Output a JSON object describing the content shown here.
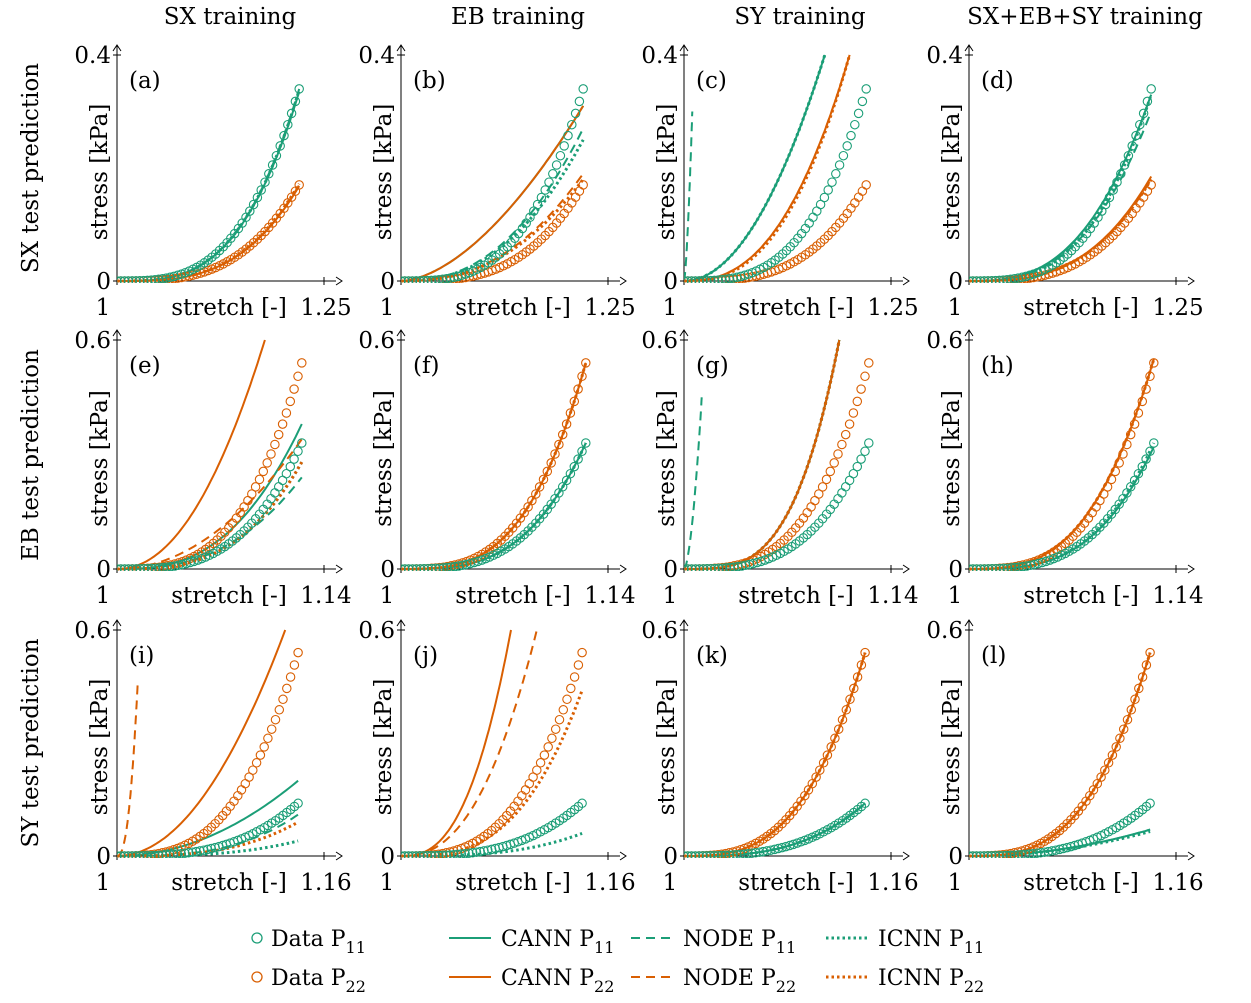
{
  "colors": {
    "p11": "#1b9e77",
    "p22": "#d95f02"
  },
  "col_titles": [
    "SX training",
    "EB training",
    "SY training",
    "SX+EB+SY training"
  ],
  "row_titles": [
    "SX test prediction",
    "EB test prediction",
    "SY test prediction"
  ],
  "legend": {
    "items": [
      {
        "label": "Data P",
        "sub": "11",
        "kind": "data",
        "series": "P11"
      },
      {
        "label": "CANN P",
        "sub": "11",
        "kind": "cann",
        "series": "P11"
      },
      {
        "label": "NODE P",
        "sub": "11",
        "kind": "node",
        "series": "P11"
      },
      {
        "label": "ICNN P",
        "sub": "11",
        "kind": "icnn",
        "series": "P11"
      },
      {
        "label": "Data P",
        "sub": "22",
        "kind": "data",
        "series": "P22"
      },
      {
        "label": "CANN P",
        "sub": "22",
        "kind": "cann",
        "series": "P22"
      },
      {
        "label": "NODE P",
        "sub": "22",
        "kind": "node",
        "series": "P22"
      },
      {
        "label": "ICNN P",
        "sub": "22",
        "kind": "icnn",
        "series": "P22"
      }
    ]
  },
  "chart_data": [
    {
      "panel": "(a)",
      "row": 0,
      "col": 0,
      "type": "line",
      "xlabel": "stretch [-]",
      "ylabel": "stress [kPa]",
      "xlim": [
        1,
        1.25
      ],
      "ylim": [
        0,
        0.4
      ],
      "xticks": [
        "1",
        "1.25"
      ],
      "yticks": [
        "0",
        "0.4"
      ],
      "data": {
        "P11": {
          "xmax": 1.22,
          "ymax": 0.34,
          "exp": 3.2
        },
        "P22": {
          "xmax": 1.22,
          "ymax": 0.17,
          "exp": 3.2
        }
      },
      "models": [
        {
          "model": "CANN",
          "series": "P11",
          "xmax": 1.22,
          "ymax": 0.335,
          "exp": 3.2
        },
        {
          "model": "CANN",
          "series": "P22",
          "xmax": 1.22,
          "ymax": 0.168,
          "exp": 3.2
        },
        {
          "model": "NODE",
          "series": "P11",
          "xmax": 1.22,
          "ymax": 0.34,
          "exp": 3.2
        },
        {
          "model": "NODE",
          "series": "P22",
          "xmax": 1.22,
          "ymax": 0.17,
          "exp": 3.2
        },
        {
          "model": "ICNN",
          "series": "P11",
          "xmax": 1.22,
          "ymax": 0.338,
          "exp": 3.2
        },
        {
          "model": "ICNN",
          "series": "P22",
          "xmax": 1.22,
          "ymax": 0.172,
          "exp": 3.2
        }
      ]
    },
    {
      "panel": "(b)",
      "row": 0,
      "col": 1,
      "type": "line",
      "xlabel": "stretch [-]",
      "ylabel": "stress [kPa]",
      "xlim": [
        1,
        1.25
      ],
      "ylim": [
        0,
        0.4
      ],
      "xticks": [
        "1",
        "1.25"
      ],
      "yticks": [
        "0",
        "0.4"
      ],
      "data": {
        "P11": {
          "xmax": 1.22,
          "ymax": 0.34,
          "exp": 3.2
        },
        "P22": {
          "xmax": 1.22,
          "ymax": 0.17,
          "exp": 3.2
        }
      },
      "models": [
        {
          "model": "CANN",
          "series": "P11",
          "xmax": 1.22,
          "ymax": 0.31,
          "exp": 1.7
        },
        {
          "model": "CANN",
          "series": "P22",
          "xmax": 1.22,
          "ymax": 0.31,
          "exp": 1.7
        },
        {
          "model": "NODE",
          "series": "P11",
          "xmax": 1.22,
          "ymax": 0.27,
          "exp": 2.4
        },
        {
          "model": "NODE",
          "series": "P22",
          "xmax": 1.22,
          "ymax": 0.19,
          "exp": 2.4
        },
        {
          "model": "ICNN",
          "series": "P11",
          "xmax": 1.22,
          "ymax": 0.25,
          "exp": 2.4
        },
        {
          "model": "ICNN",
          "series": "P22",
          "xmax": 1.22,
          "ymax": 0.18,
          "exp": 2.4
        }
      ]
    },
    {
      "panel": "(c)",
      "row": 0,
      "col": 2,
      "type": "line",
      "xlabel": "stretch [-]",
      "ylabel": "stress [kPa]",
      "xlim": [
        1,
        1.25
      ],
      "ylim": [
        0,
        0.4
      ],
      "xticks": [
        "1",
        "1.25"
      ],
      "yticks": [
        "0",
        "0.4"
      ],
      "data": {
        "P11": {
          "xmax": 1.22,
          "ymax": 0.34,
          "exp": 3.2
        },
        "P22": {
          "xmax": 1.22,
          "ymax": 0.17,
          "exp": 3.2
        }
      },
      "models": [
        {
          "model": "CANN",
          "series": "P11",
          "xmax": 1.17,
          "ymax": 0.4,
          "exp": 2.0
        },
        {
          "model": "CANN",
          "series": "P22",
          "xmax": 1.2,
          "ymax": 0.4,
          "exp": 2.5
        },
        {
          "model": "NODE",
          "series": "P11",
          "xmax": 1.01,
          "ymax": 0.3,
          "exp": 1.5
        },
        {
          "model": "NODE",
          "series": "P11",
          "xmax": 1.17,
          "ymax": 0.4,
          "exp": 2.0
        },
        {
          "model": "NODE",
          "series": "P22",
          "xmax": 1.2,
          "ymax": 0.4,
          "exp": 2.5
        },
        {
          "model": "ICNN",
          "series": "P11",
          "xmax": 1.17,
          "ymax": 0.4,
          "exp": 2.0
        },
        {
          "model": "ICNN",
          "series": "P22",
          "xmax": 1.2,
          "ymax": 0.4,
          "exp": 2.6
        }
      ]
    },
    {
      "panel": "(d)",
      "row": 0,
      "col": 3,
      "type": "line",
      "xlabel": "stretch [-]",
      "ylabel": "stress [kPa]",
      "xlim": [
        1,
        1.25
      ],
      "ylim": [
        0,
        0.4
      ],
      "xticks": [
        "1",
        "1.25"
      ],
      "yticks": [
        "0",
        "0.4"
      ],
      "data": {
        "P11": {
          "xmax": 1.22,
          "ymax": 0.34,
          "exp": 3.2
        },
        "P22": {
          "xmax": 1.22,
          "ymax": 0.17,
          "exp": 3.2
        }
      },
      "models": [
        {
          "model": "CANN",
          "series": "P11",
          "xmax": 1.22,
          "ymax": 0.33,
          "exp": 2.8
        },
        {
          "model": "CANN",
          "series": "P22",
          "xmax": 1.22,
          "ymax": 0.185,
          "exp": 3.0
        },
        {
          "model": "NODE",
          "series": "P11",
          "xmax": 1.22,
          "ymax": 0.3,
          "exp": 2.8
        },
        {
          "model": "NODE",
          "series": "P22",
          "xmax": 1.22,
          "ymax": 0.18,
          "exp": 3.0
        },
        {
          "model": "ICNN",
          "series": "P11",
          "xmax": 1.22,
          "ymax": 0.33,
          "exp": 3.0
        },
        {
          "model": "ICNN",
          "series": "P22",
          "xmax": 1.22,
          "ymax": 0.18,
          "exp": 3.0
        }
      ]
    },
    {
      "panel": "(e)",
      "row": 1,
      "col": 0,
      "type": "line",
      "xlabel": "stretch [-]",
      "ylabel": "stress [kPa]",
      "xlim": [
        1,
        1.14
      ],
      "ylim": [
        0,
        0.6
      ],
      "xticks": [
        "1",
        "1.14"
      ],
      "yticks": [
        "0",
        "0.6"
      ],
      "data": {
        "P11": {
          "xmax": 1.125,
          "ymax": 0.33,
          "exp": 3.2
        },
        "P22": {
          "xmax": 1.125,
          "ymax": 0.54,
          "exp": 3.2
        }
      },
      "models": [
        {
          "model": "CANN",
          "series": "P11",
          "xmax": 1.125,
          "ymax": 0.38,
          "exp": 2.7
        },
        {
          "model": "CANN",
          "series": "P22",
          "xmax": 1.1,
          "ymax": 0.6,
          "exp": 2.1
        },
        {
          "model": "NODE",
          "series": "P11",
          "xmax": 1.125,
          "ymax": 0.24,
          "exp": 2.6
        },
        {
          "model": "NODE",
          "series": "P22",
          "xmax": 1.125,
          "ymax": 0.34,
          "exp": 2.0
        },
        {
          "model": "ICNN",
          "series": "P11",
          "xmax": 1.125,
          "ymax": 0.28,
          "exp": 3.0
        },
        {
          "model": "ICNN",
          "series": "P22",
          "xmax": 1.125,
          "ymax": 0.28,
          "exp": 3.0
        }
      ]
    },
    {
      "panel": "(f)",
      "row": 1,
      "col": 1,
      "type": "line",
      "xlabel": "stretch [-]",
      "ylabel": "stress [kPa]",
      "xlim": [
        1,
        1.14
      ],
      "ylim": [
        0,
        0.6
      ],
      "xticks": [
        "1",
        "1.14"
      ],
      "yticks": [
        "0",
        "0.6"
      ],
      "data": {
        "P11": {
          "xmax": 1.125,
          "ymax": 0.33,
          "exp": 3.2
        },
        "P22": {
          "xmax": 1.125,
          "ymax": 0.54,
          "exp": 3.2
        }
      },
      "models": [
        {
          "model": "CANN",
          "series": "P11",
          "xmax": 1.125,
          "ymax": 0.33,
          "exp": 3.2
        },
        {
          "model": "CANN",
          "series": "P22",
          "xmax": 1.125,
          "ymax": 0.54,
          "exp": 3.2
        },
        {
          "model": "NODE",
          "series": "P11",
          "xmax": 1.125,
          "ymax": 0.33,
          "exp": 3.2
        },
        {
          "model": "NODE",
          "series": "P22",
          "xmax": 1.125,
          "ymax": 0.54,
          "exp": 3.2
        },
        {
          "model": "ICNN",
          "series": "P11",
          "xmax": 1.125,
          "ymax": 0.33,
          "exp": 3.2
        },
        {
          "model": "ICNN",
          "series": "P22",
          "xmax": 1.125,
          "ymax": 0.54,
          "exp": 3.2
        }
      ]
    },
    {
      "panel": "(g)",
      "row": 1,
      "col": 2,
      "type": "line",
      "xlabel": "stretch [-]",
      "ylabel": "stress [kPa]",
      "xlim": [
        1,
        1.14
      ],
      "ylim": [
        0,
        0.6
      ],
      "xticks": [
        "1",
        "1.14"
      ],
      "yticks": [
        "0",
        "0.6"
      ],
      "data": {
        "P11": {
          "xmax": 1.125,
          "ymax": 0.33,
          "exp": 3.2
        },
        "P22": {
          "xmax": 1.125,
          "ymax": 0.54,
          "exp": 3.2
        }
      },
      "models": [
        {
          "model": "CANN",
          "series": "P11",
          "xmax": 1.105,
          "ymax": 0.6,
          "exp": 3.5
        },
        {
          "model": "CANN",
          "series": "P22",
          "xmax": 1.105,
          "ymax": 0.6,
          "exp": 3.5
        },
        {
          "model": "NODE",
          "series": "P11",
          "xmax": 1.012,
          "ymax": 0.45,
          "exp": 1.7
        },
        {
          "model": "NODE",
          "series": "P11",
          "xmax": 1.105,
          "ymax": 0.6,
          "exp": 3.5
        },
        {
          "model": "NODE",
          "series": "P22",
          "xmax": 1.105,
          "ymax": 0.6,
          "exp": 3.5
        },
        {
          "model": "ICNN",
          "series": "P11",
          "xmax": 1.105,
          "ymax": 0.6,
          "exp": 3.5
        },
        {
          "model": "ICNN",
          "series": "P22",
          "xmax": 1.105,
          "ymax": 0.6,
          "exp": 3.5
        }
      ]
    },
    {
      "panel": "(h)",
      "row": 1,
      "col": 3,
      "type": "line",
      "xlabel": "stretch [-]",
      "ylabel": "stress [kPa]",
      "xlim": [
        1,
        1.14
      ],
      "ylim": [
        0,
        0.6
      ],
      "xticks": [
        "1",
        "1.14"
      ],
      "yticks": [
        "0",
        "0.6"
      ],
      "data": {
        "P11": {
          "xmax": 1.125,
          "ymax": 0.33,
          "exp": 3.2
        },
        "P22": {
          "xmax": 1.125,
          "ymax": 0.54,
          "exp": 3.2
        }
      },
      "models": [
        {
          "model": "CANN",
          "series": "P11",
          "xmax": 1.125,
          "ymax": 0.32,
          "exp": 3.2
        },
        {
          "model": "CANN",
          "series": "P22",
          "xmax": 1.125,
          "ymax": 0.55,
          "exp": 3.0
        },
        {
          "model": "NODE",
          "series": "P11",
          "xmax": 1.125,
          "ymax": 0.32,
          "exp": 3.2
        },
        {
          "model": "NODE",
          "series": "P22",
          "xmax": 1.125,
          "ymax": 0.55,
          "exp": 3.0
        },
        {
          "model": "ICNN",
          "series": "P11",
          "xmax": 1.125,
          "ymax": 0.33,
          "exp": 3.2
        },
        {
          "model": "ICNN",
          "series": "P22",
          "xmax": 1.125,
          "ymax": 0.55,
          "exp": 3.0
        }
      ]
    },
    {
      "panel": "(i)",
      "row": 2,
      "col": 0,
      "type": "line",
      "xlabel": "stretch [-]",
      "ylabel": "stress [kPa]",
      "xlim": [
        1,
        1.16
      ],
      "ylim": [
        0,
        0.6
      ],
      "xticks": [
        "1",
        "1.16"
      ],
      "yticks": [
        "0",
        "0.6"
      ],
      "data": {
        "P11": {
          "xmax": 1.14,
          "ymax": 0.14,
          "exp": 3.0
        },
        "P22": {
          "xmax": 1.14,
          "ymax": 0.54,
          "exp": 3.0
        }
      },
      "models": [
        {
          "model": "CANN",
          "series": "P11",
          "xmax": 1.14,
          "ymax": 0.2,
          "exp": 2.0
        },
        {
          "model": "CANN",
          "series": "P22",
          "xmax": 1.13,
          "ymax": 0.6,
          "exp": 2.0
        },
        {
          "model": "NODE",
          "series": "P11",
          "xmax": 1.14,
          "ymax": 0.11,
          "exp": 3.0
        },
        {
          "model": "NODE",
          "series": "P22",
          "xmax": 1.016,
          "ymax": 0.46,
          "exp": 2.4
        },
        {
          "model": "ICNN",
          "series": "P11",
          "xmax": 1.14,
          "ymax": 0.04,
          "exp": 3.0
        },
        {
          "model": "ICNN",
          "series": "P22",
          "xmax": 1.14,
          "ymax": 0.09,
          "exp": 3.0
        }
      ]
    },
    {
      "panel": "(j)",
      "row": 2,
      "col": 1,
      "type": "line",
      "xlabel": "stretch [-]",
      "ylabel": "stress [kPa]",
      "xlim": [
        1,
        1.16
      ],
      "ylim": [
        0,
        0.6
      ],
      "xticks": [
        "1",
        "1.16"
      ],
      "yticks": [
        "0",
        "0.6"
      ],
      "data": {
        "P11": {
          "xmax": 1.14,
          "ymax": 0.14,
          "exp": 3.0
        },
        "P22": {
          "xmax": 1.14,
          "ymax": 0.54,
          "exp": 3.0
        }
      },
      "models": [
        {
          "model": "CANN",
          "series": "P22",
          "xmax": 1.085,
          "ymax": 0.6,
          "exp": 2.6
        },
        {
          "model": "NODE",
          "series": "P22",
          "xmax": 1.105,
          "ymax": 0.6,
          "exp": 2.4
        },
        {
          "model": "ICNN",
          "series": "P11",
          "xmax": 1.14,
          "ymax": 0.06,
          "exp": 3.0
        },
        {
          "model": "ICNN",
          "series": "P22",
          "xmax": 1.14,
          "ymax": 0.44,
          "exp": 3.0
        }
      ]
    },
    {
      "panel": "(k)",
      "row": 2,
      "col": 2,
      "type": "line",
      "xlabel": "stretch [-]",
      "ylabel": "stress [kPa]",
      "xlim": [
        1,
        1.16
      ],
      "ylim": [
        0,
        0.6
      ],
      "xticks": [
        "1",
        "1.16"
      ],
      "yticks": [
        "0",
        "0.6"
      ],
      "data": {
        "P11": {
          "xmax": 1.14,
          "ymax": 0.14,
          "exp": 3.0
        },
        "P22": {
          "xmax": 1.14,
          "ymax": 0.54,
          "exp": 3.0
        }
      },
      "models": [
        {
          "model": "CANN",
          "series": "P11",
          "xmax": 1.14,
          "ymax": 0.14,
          "exp": 3.0
        },
        {
          "model": "CANN",
          "series": "P22",
          "xmax": 1.14,
          "ymax": 0.54,
          "exp": 3.0
        },
        {
          "model": "NODE",
          "series": "P11",
          "xmax": 1.14,
          "ymax": 0.14,
          "exp": 3.0
        },
        {
          "model": "NODE",
          "series": "P22",
          "xmax": 1.14,
          "ymax": 0.54,
          "exp": 3.0
        },
        {
          "model": "ICNN",
          "series": "P11",
          "xmax": 1.14,
          "ymax": 0.14,
          "exp": 3.0
        },
        {
          "model": "ICNN",
          "series": "P22",
          "xmax": 1.14,
          "ymax": 0.54,
          "exp": 3.0
        }
      ]
    },
    {
      "panel": "(l)",
      "row": 2,
      "col": 3,
      "type": "line",
      "xlabel": "stretch [-]",
      "ylabel": "stress [kPa]",
      "xlim": [
        1,
        1.16
      ],
      "ylim": [
        0,
        0.6
      ],
      "xticks": [
        "1",
        "1.16"
      ],
      "yticks": [
        "0",
        "0.6"
      ],
      "data": {
        "P11": {
          "xmax": 1.14,
          "ymax": 0.14,
          "exp": 3.0
        },
        "P22": {
          "xmax": 1.14,
          "ymax": 0.54,
          "exp": 3.0
        }
      },
      "models": [
        {
          "model": "CANN",
          "series": "P11",
          "xmax": 1.14,
          "ymax": 0.07,
          "exp": 2.0
        },
        {
          "model": "CANN",
          "series": "P22",
          "xmax": 1.14,
          "ymax": 0.54,
          "exp": 3.0
        },
        {
          "model": "NODE",
          "series": "P11",
          "xmax": 1.14,
          "ymax": 0.07,
          "exp": 2.0
        },
        {
          "model": "NODE",
          "series": "P22",
          "xmax": 1.14,
          "ymax": 0.54,
          "exp": 3.0
        },
        {
          "model": "ICNN",
          "series": "P11",
          "xmax": 1.14,
          "ymax": 0.065,
          "exp": 2.0
        },
        {
          "model": "ICNN",
          "series": "P22",
          "xmax": 1.14,
          "ymax": 0.54,
          "exp": 3.0
        }
      ]
    }
  ]
}
